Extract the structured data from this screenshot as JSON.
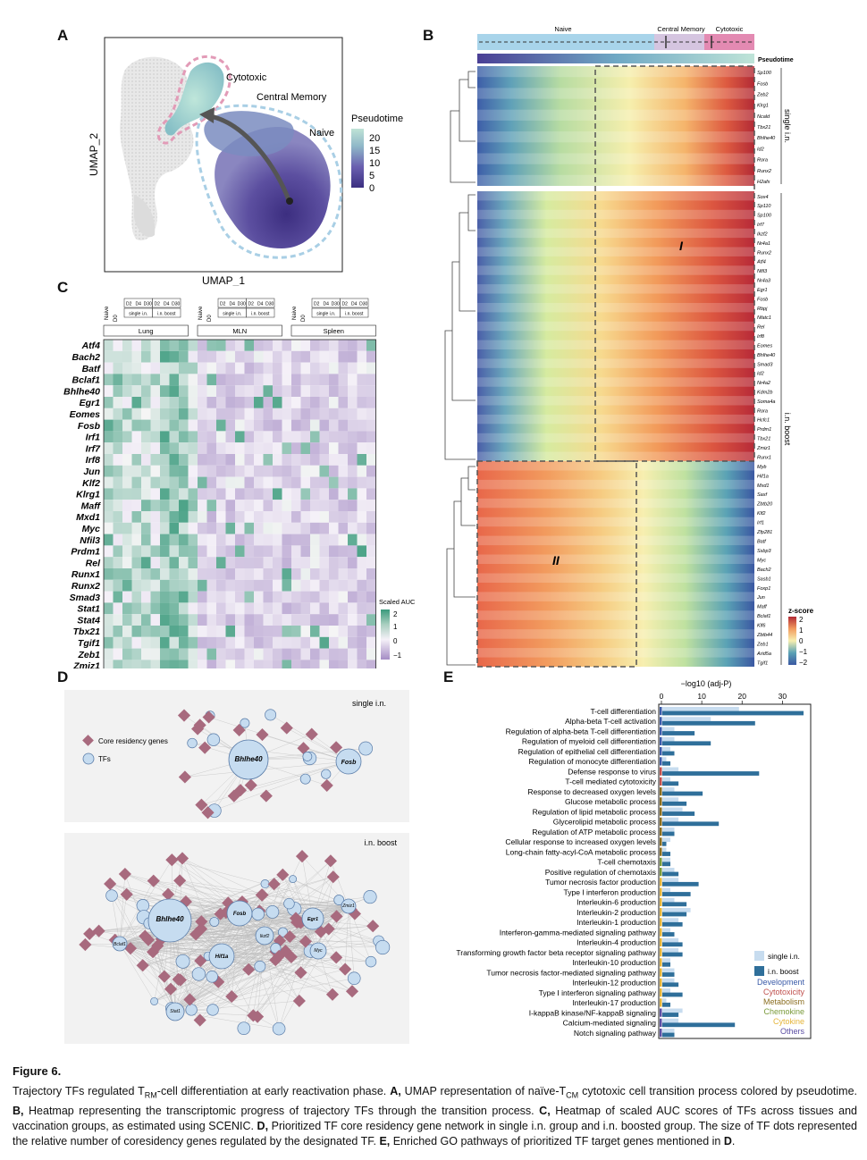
{
  "panels": {
    "a": "A",
    "b": "B",
    "c": "C",
    "d": "D",
    "e": "E"
  },
  "panelA": {
    "xlabel": "UMAP_1",
    "ylabel": "UMAP_2",
    "labels": {
      "cytotoxic": "Cytotoxic",
      "central": "Central Memory",
      "naive": "Naive"
    },
    "legend": {
      "title": "Pseudotime",
      "ticks": [
        "20",
        "15",
        "10",
        "5",
        "0"
      ]
    }
  },
  "panelB": {
    "states": [
      "Naive",
      "Central Memory",
      "Cytotoxic"
    ],
    "pseudotime_label": "Pseudotime",
    "group_labels": {
      "single": "single i.n.",
      "boost": "i.n. boost"
    },
    "cluster_labels": [
      "I",
      "II"
    ],
    "zscore": {
      "title": "z-score",
      "ticks": [
        "2",
        "1",
        "0",
        "−1",
        "−2"
      ]
    },
    "single_genes": [
      "Sp100",
      "Fosb",
      "Zeb2",
      "Klrg1",
      "Ncald",
      "Tbx21",
      "Bhlhe40",
      "Id2",
      "Rora",
      "Runx2",
      "H2afx"
    ],
    "boost_genes_I": [
      "Sox4",
      "Sp110",
      "Sp100",
      "Irf7",
      "Ikzf2",
      "Nr4a1",
      "Runx2",
      "Atf4",
      "Nfil3",
      "Nr4a3",
      "Egr1",
      "Fosb",
      "Rbpj",
      "Nfatc1",
      "Rel",
      "Irf8",
      "Eomes",
      "Bhlhe40",
      "Smad3",
      "Id2",
      "Nr4a2",
      "Kdm2b",
      "Soma4a",
      "Rora",
      "Hcfc1",
      "Prdm1",
      "Tbx21",
      "Zmiz1",
      "Runx1"
    ],
    "boost_genes_II": [
      "Myb",
      "Hif1a",
      "Mxd1",
      "Saxf",
      "Zbtb20",
      "Klf2",
      "Irf1",
      "Zfp281",
      "Batf",
      "Ssbp3",
      "Myc",
      "Bach2",
      "Sasb1",
      "Foxp1",
      "Jun",
      "Maff",
      "Bclaf1",
      "Klf6",
      "Zbtb44",
      "Zeb1",
      "Arid5a",
      "Tgif1"
    ]
  },
  "panelC": {
    "tf_labels": [
      "Atf4",
      "Bach2",
      "Batf",
      "Bclaf1",
      "Bhlhe40",
      "Egr1",
      "Eomes",
      "Fosb",
      "Irf1",
      "Irf7",
      "Irf8",
      "Jun",
      "Klf2",
      "Klrg1",
      "Maff",
      "Mxd1",
      "Myc",
      "Nfil3",
      "Prdm1",
      "Rel",
      "Runx1",
      "Runx2",
      "Smad3",
      "Stat1",
      "Stat4",
      "Tbx21",
      "Tgif1",
      "Zeb1",
      "Zmiz1"
    ],
    "tissues": [
      "Lung",
      "MLN",
      "Spleen"
    ],
    "naive_label": "Naive",
    "d0_label": "D0",
    "days": [
      "D2",
      "D4",
      "D30"
    ],
    "groups": [
      "single i.n.",
      "i.n. boost"
    ],
    "legend": {
      "title": "Scaled AUC",
      "ticks": [
        "2",
        "1",
        "0",
        "−1"
      ]
    }
  },
  "panelD": {
    "single_title": "single i.n.",
    "boost_title": "i.n. boost",
    "legend": {
      "genes": "Core residency genes",
      "tfs": "TFs"
    },
    "single_hubs": [
      "Bhlhe40",
      "Fosb"
    ],
    "boost_hubs": [
      "Bhlhe40",
      "Fosb",
      "Egr1",
      "Zmiz1",
      "Hif1a",
      "Ikzf2",
      "Bclaf1",
      "Myc",
      "Stat1"
    ]
  },
  "panelE": {
    "axis_label": "−log10 (adj-P)",
    "ticks": [
      "0",
      "10",
      "20",
      "30"
    ],
    "legend": {
      "single": "single i.n.",
      "boost": "i.n. boost"
    },
    "categories": [
      "Development",
      "Cytotoxicity",
      "Metabolism",
      "Chemokine",
      "Cytokine",
      "Others"
    ],
    "category_colors": {
      "Development": "#3a5aa8",
      "Cytotoxicity": "#c0504d",
      "Metabolism": "#8a6d1f",
      "Chemokine": "#7a9a3a",
      "Cytokine": "#e5b53a",
      "Others": "#5b4ea3"
    }
  },
  "chart_data": [
    {
      "type": "bar",
      "title": "",
      "xlabel": "−log10 (adj-P)",
      "xlim": [
        0,
        37
      ],
      "categories": [
        "T-cell differentiation",
        "Alpha-beta T-cell activation",
        "Regulation of alpha-beta T-cell differentiation",
        "Regulation of myeloid cell differentiation",
        "Regulation of epithelial cell differentiation",
        "Regulation of monocyte differentiation",
        "Defense response to virus",
        "T-cell mediated cytotoxicity",
        "Response to decreased oxygen levels",
        "Glucose metabolic process",
        "Regulation of lipid metabolic process",
        "Glycerolipid metabolic process",
        "Regulation of ATP metabolic process",
        "Cellular response to increased oxygen levels",
        "Long-chain fatty-acyl-CoA metabolic process",
        "T-cell chemotaxis",
        "Positive regulation of chemotaxis",
        "Tumor necrosis factor production",
        "Type I interferon production",
        "Interleukin-6 production",
        "Interleukin-2 production",
        "Interleukin-1 production",
        "Interferon-gamma-mediated signaling pathway",
        "Interleukin-4 production",
        "Transforming growth factor beta receptor signaling pathway",
        "Interleukin-10 production",
        "Tumor necrosis factor-mediated signaling pathway",
        "Interleukin-12 production",
        "Type I interferon signaling pathway",
        "Interleukin-17 production",
        "I-kappaB kinase/NF-kappaB signaling",
        "Calcium-mediated signaling",
        "Notch signaling pathway"
      ],
      "category_group": [
        "Development",
        "Development",
        "Development",
        "Development",
        "Development",
        "Development",
        "Cytotoxicity",
        "Cytotoxicity",
        "Metabolism",
        "Metabolism",
        "Metabolism",
        "Metabolism",
        "Metabolism",
        "Metabolism",
        "Metabolism",
        "Chemokine",
        "Chemokine",
        "Cytokine",
        "Cytokine",
        "Cytokine",
        "Cytokine",
        "Cytokine",
        "Cytokine",
        "Cytokine",
        "Cytokine",
        "Cytokine",
        "Cytokine",
        "Cytokine",
        "Cytokine",
        "Cytokine",
        "Others",
        "Others",
        "Others"
      ],
      "series": [
        {
          "name": "single i.n.",
          "color": "#c7dcef",
          "values": [
            19,
            12,
            3,
            3,
            2,
            1,
            4,
            2,
            3,
            4,
            5,
            4,
            3,
            2,
            1,
            2,
            3,
            4,
            2,
            3,
            7,
            4,
            2,
            4,
            4,
            2,
            3,
            3,
            2,
            1,
            5,
            4,
            3
          ]
        },
        {
          "name": "i.n. boost",
          "color": "#2f6f9a",
          "values": [
            35,
            23,
            8,
            12,
            3,
            2,
            24,
            4,
            10,
            6,
            8,
            14,
            3,
            1,
            2,
            2,
            4,
            9,
            7,
            6,
            6,
            5,
            3,
            5,
            5,
            2,
            3,
            4,
            5,
            2,
            4,
            18,
            3
          ]
        }
      ]
    }
  ]
}
